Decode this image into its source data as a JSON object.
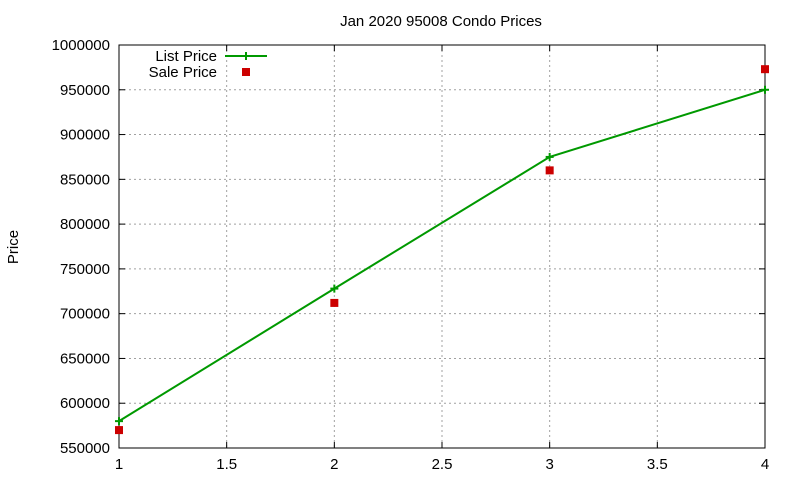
{
  "chart_data": {
    "type": "line",
    "title": "Jan 2020 95008 Condo Prices",
    "xlabel": "",
    "ylabel": "Price",
    "xlim": [
      1,
      4
    ],
    "ylim": [
      550000,
      1000000
    ],
    "x_ticks": [
      "1",
      "1.5",
      "2",
      "2.5",
      "3",
      "3.5",
      "4"
    ],
    "y_ticks": [
      "550000",
      "600000",
      "650000",
      "700000",
      "750000",
      "800000",
      "850000",
      "900000",
      "950000",
      "1000000"
    ],
    "grid": true,
    "legend_position": "top-left",
    "series": [
      {
        "name": "List Price",
        "style": "linespoints",
        "marker": "plus",
        "color": "#009900",
        "x": [
          1,
          2,
          3,
          4
        ],
        "y": [
          580000,
          728000,
          875000,
          950000
        ]
      },
      {
        "name": "Sale Price",
        "style": "points",
        "marker": "square",
        "color": "#cc0000",
        "x": [
          1,
          2,
          3,
          4
        ],
        "y": [
          570000,
          712000,
          860000,
          973000
        ]
      }
    ]
  }
}
